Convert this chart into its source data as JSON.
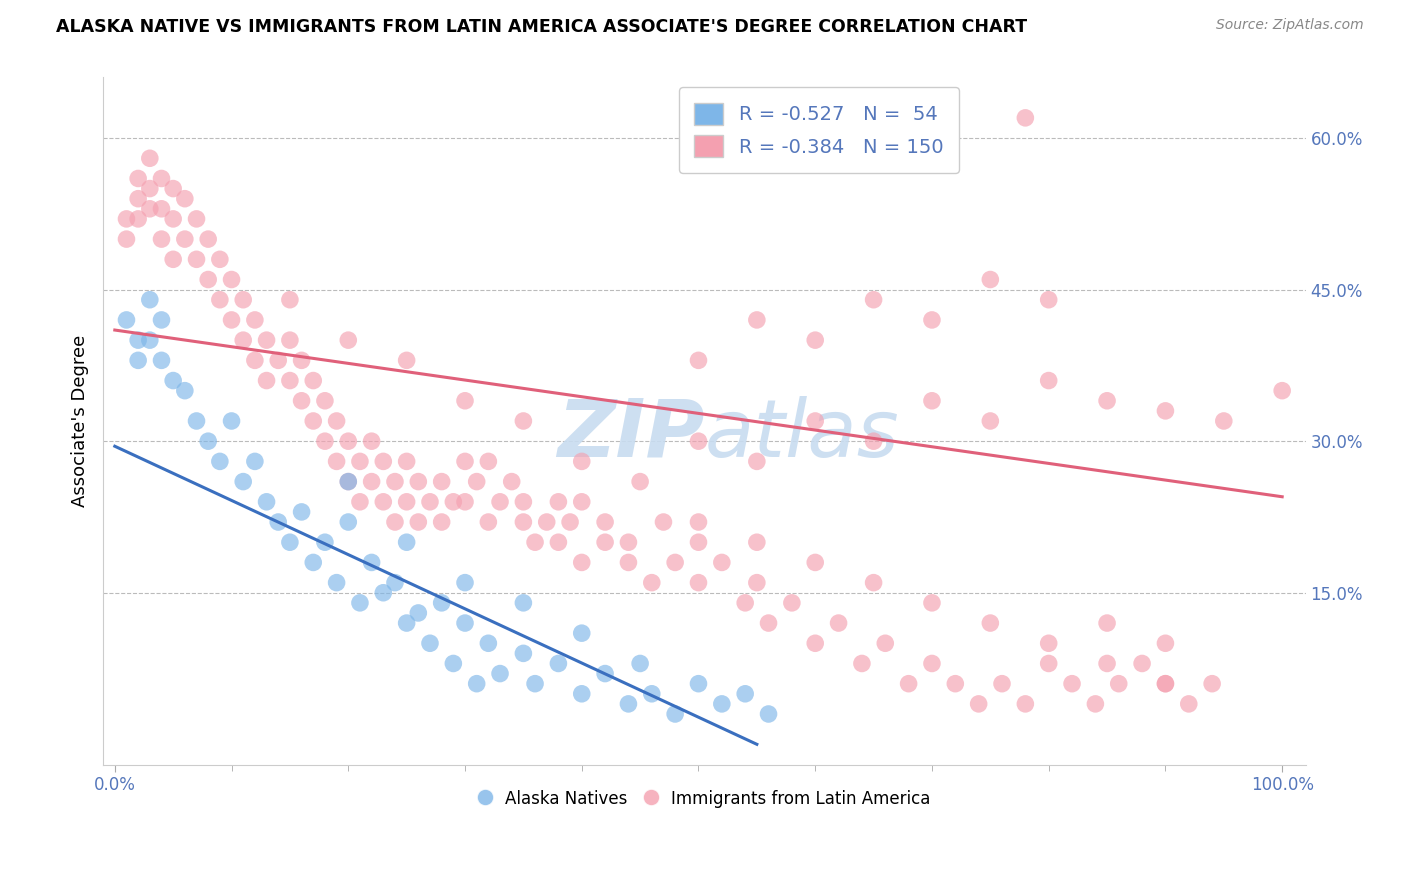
{
  "title": "ALASKA NATIVE VS IMMIGRANTS FROM LATIN AMERICA ASSOCIATE'S DEGREE CORRELATION CHART",
  "source": "Source: ZipAtlas.com",
  "ylabel": "Associate's Degree",
  "legend_R_blue": "-0.527",
  "legend_N_blue": "54",
  "legend_R_pink": "-0.384",
  "legend_N_pink": "150",
  "blue_color": "#7EB6E8",
  "pink_color": "#F4A0B0",
  "line_blue": "#3A6FBF",
  "line_pink": "#E0607A",
  "tick_color": "#5577BB",
  "watermark_color": "#C8DCF0",
  "blue_line_x0": 0.0,
  "blue_line_y0": 0.295,
  "blue_line_x1": 0.55,
  "blue_line_y1": 0.0,
  "pink_line_x0": 0.0,
  "pink_line_y0": 0.41,
  "pink_line_x1": 1.0,
  "pink_line_y1": 0.245,
  "xlim_min": -0.01,
  "xlim_max": 1.02,
  "ylim_min": -0.02,
  "ylim_max": 0.66,
  "ytick_positions": [
    0.15,
    0.3,
    0.45,
    0.6
  ],
  "ytick_labels": [
    "15.0%",
    "30.0%",
    "45.0%",
    "60.0%"
  ],
  "xtick_positions": [
    0.0,
    1.0
  ],
  "xtick_labels": [
    "0.0%",
    "100.0%"
  ],
  "blue_x": [
    0.01,
    0.02,
    0.02,
    0.03,
    0.03,
    0.04,
    0.04,
    0.05,
    0.06,
    0.07,
    0.08,
    0.09,
    0.1,
    0.11,
    0.12,
    0.13,
    0.14,
    0.15,
    0.16,
    0.17,
    0.18,
    0.19,
    0.2,
    0.21,
    0.22,
    0.23,
    0.24,
    0.25,
    0.26,
    0.27,
    0.28,
    0.29,
    0.3,
    0.31,
    0.32,
    0.33,
    0.35,
    0.36,
    0.38,
    0.4,
    0.42,
    0.44,
    0.46,
    0.48,
    0.5,
    0.52,
    0.54,
    0.56,
    0.2,
    0.25,
    0.3,
    0.35,
    0.4,
    0.45
  ],
  "blue_y": [
    0.42,
    0.4,
    0.38,
    0.44,
    0.4,
    0.42,
    0.38,
    0.36,
    0.35,
    0.32,
    0.3,
    0.28,
    0.32,
    0.26,
    0.28,
    0.24,
    0.22,
    0.2,
    0.23,
    0.18,
    0.2,
    0.16,
    0.22,
    0.14,
    0.18,
    0.15,
    0.16,
    0.12,
    0.13,
    0.1,
    0.14,
    0.08,
    0.12,
    0.06,
    0.1,
    0.07,
    0.09,
    0.06,
    0.08,
    0.05,
    0.07,
    0.04,
    0.05,
    0.03,
    0.06,
    0.04,
    0.05,
    0.03,
    0.26,
    0.2,
    0.16,
    0.14,
    0.11,
    0.08
  ],
  "pink_x": [
    0.01,
    0.01,
    0.02,
    0.02,
    0.02,
    0.03,
    0.03,
    0.03,
    0.04,
    0.04,
    0.04,
    0.05,
    0.05,
    0.05,
    0.06,
    0.06,
    0.07,
    0.07,
    0.08,
    0.08,
    0.09,
    0.09,
    0.1,
    0.1,
    0.11,
    0.11,
    0.12,
    0.12,
    0.13,
    0.13,
    0.14,
    0.15,
    0.15,
    0.16,
    0.16,
    0.17,
    0.17,
    0.18,
    0.18,
    0.19,
    0.19,
    0.2,
    0.2,
    0.21,
    0.21,
    0.22,
    0.22,
    0.23,
    0.23,
    0.24,
    0.24,
    0.25,
    0.25,
    0.26,
    0.26,
    0.27,
    0.28,
    0.28,
    0.29,
    0.3,
    0.3,
    0.31,
    0.32,
    0.32,
    0.33,
    0.34,
    0.35,
    0.35,
    0.36,
    0.37,
    0.38,
    0.38,
    0.39,
    0.4,
    0.4,
    0.42,
    0.42,
    0.44,
    0.44,
    0.46,
    0.47,
    0.48,
    0.5,
    0.5,
    0.52,
    0.54,
    0.55,
    0.56,
    0.58,
    0.6,
    0.62,
    0.64,
    0.66,
    0.68,
    0.7,
    0.72,
    0.74,
    0.76,
    0.78,
    0.8,
    0.82,
    0.84,
    0.86,
    0.88,
    0.9,
    0.92,
    0.94,
    0.5,
    0.55,
    0.6,
    0.65,
    0.7,
    0.75,
    0.8,
    0.85,
    0.9,
    0.5,
    0.55,
    0.6,
    0.65,
    0.7,
    0.75,
    0.8,
    0.85,
    0.15,
    0.2,
    0.25,
    0.3,
    0.35,
    0.4,
    0.45,
    0.5,
    0.55,
    0.6,
    0.65,
    0.7,
    0.75,
    0.8,
    0.85,
    0.9,
    0.95,
    1.0,
    0.78,
    0.9
  ],
  "pink_y": [
    0.52,
    0.5,
    0.56,
    0.54,
    0.52,
    0.58,
    0.55,
    0.53,
    0.56,
    0.53,
    0.5,
    0.55,
    0.52,
    0.48,
    0.54,
    0.5,
    0.52,
    0.48,
    0.5,
    0.46,
    0.48,
    0.44,
    0.46,
    0.42,
    0.44,
    0.4,
    0.42,
    0.38,
    0.4,
    0.36,
    0.38,
    0.4,
    0.36,
    0.38,
    0.34,
    0.36,
    0.32,
    0.34,
    0.3,
    0.32,
    0.28,
    0.3,
    0.26,
    0.28,
    0.24,
    0.3,
    0.26,
    0.28,
    0.24,
    0.26,
    0.22,
    0.28,
    0.24,
    0.26,
    0.22,
    0.24,
    0.26,
    0.22,
    0.24,
    0.28,
    0.24,
    0.26,
    0.22,
    0.28,
    0.24,
    0.26,
    0.22,
    0.24,
    0.2,
    0.22,
    0.24,
    0.2,
    0.22,
    0.18,
    0.24,
    0.2,
    0.22,
    0.18,
    0.2,
    0.16,
    0.22,
    0.18,
    0.2,
    0.16,
    0.18,
    0.14,
    0.16,
    0.12,
    0.14,
    0.1,
    0.12,
    0.08,
    0.1,
    0.06,
    0.08,
    0.06,
    0.04,
    0.06,
    0.04,
    0.08,
    0.06,
    0.04,
    0.06,
    0.08,
    0.06,
    0.04,
    0.06,
    0.38,
    0.42,
    0.4,
    0.44,
    0.42,
    0.46,
    0.44,
    0.12,
    0.1,
    0.3,
    0.28,
    0.32,
    0.3,
    0.34,
    0.32,
    0.36,
    0.34,
    0.44,
    0.4,
    0.38,
    0.34,
    0.32,
    0.28,
    0.26,
    0.22,
    0.2,
    0.18,
    0.16,
    0.14,
    0.12,
    0.1,
    0.08,
    0.06,
    0.32,
    0.35,
    0.62,
    0.33
  ]
}
